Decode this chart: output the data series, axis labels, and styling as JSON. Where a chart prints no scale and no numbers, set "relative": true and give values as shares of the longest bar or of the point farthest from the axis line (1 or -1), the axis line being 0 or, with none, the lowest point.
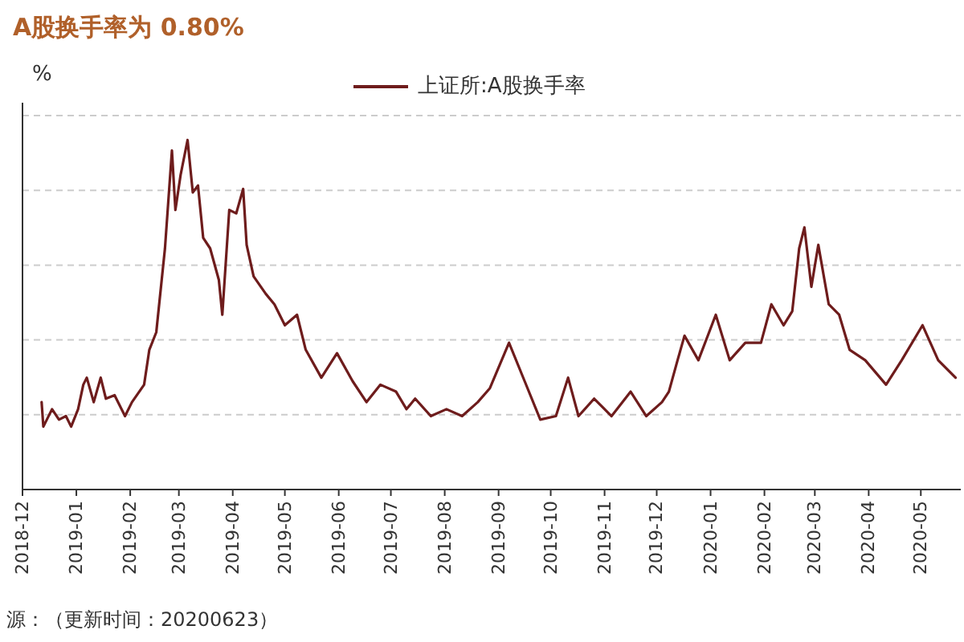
{
  "chart_data": {
    "type": "line",
    "title": "A股换手率为 0.80%",
    "ylabel": "%",
    "relative": true,
    "grid": "y",
    "legend": "top",
    "marker": "none",
    "line_style": "solid",
    "xlim": [
      "2018-12-01",
      "2020-05-24"
    ],
    "xticks": [
      {
        "value": "2018-12-01",
        "label": "2018-12"
      },
      {
        "value": "2019-01-01",
        "label": "2019-01"
      },
      {
        "value": "2019-02-01",
        "label": "2019-02"
      },
      {
        "value": "2019-03-01",
        "label": "2019-03"
      },
      {
        "value": "2019-04-01",
        "label": "2019-04"
      },
      {
        "value": "2019-05-01",
        "label": "2019-05"
      },
      {
        "value": "2019-06-01",
        "label": "2019-06"
      },
      {
        "value": "2019-07-01",
        "label": "2019-07"
      },
      {
        "value": "2019-08-01",
        "label": "2019-08"
      },
      {
        "value": "2019-09-01",
        "label": "2019-09"
      },
      {
        "value": "2019-10-01",
        "label": "2019-10"
      },
      {
        "value": "2019-11-01",
        "label": "2019-11"
      },
      {
        "value": "2019-12-01",
        "label": "2019-12"
      },
      {
        "value": "2020-01-01",
        "label": "2020-01"
      },
      {
        "value": "2020-02-01",
        "label": "2020-02"
      },
      {
        "value": "2020-03-01",
        "label": "2020-03"
      },
      {
        "value": "2020-04-01",
        "label": "2020-04"
      },
      {
        "value": "2020-05-01",
        "label": "2020-05"
      }
    ],
    "x": [
      "2018-12-12",
      "2018-12-13",
      "2018-12-18",
      "2018-12-22",
      "2018-12-26",
      "2018-12-29",
      "2019-01-02",
      "2019-01-05",
      "2019-01-07",
      "2019-01-11",
      "2019-01-15",
      "2019-01-18",
      "2019-01-23",
      "2019-01-29",
      "2019-02-02",
      "2019-02-09",
      "2019-02-12",
      "2019-02-16",
      "2019-02-21",
      "2019-02-25",
      "2019-02-27",
      "2019-03-02",
      "2019-03-06",
      "2019-03-09",
      "2019-03-12",
      "2019-03-15",
      "2019-03-19",
      "2019-03-24",
      "2019-03-26",
      "2019-03-30",
      "2019-04-03",
      "2019-04-07",
      "2019-04-09",
      "2019-04-13",
      "2019-04-20",
      "2019-04-25",
      "2019-05-01",
      "2019-05-08",
      "2019-05-13",
      "2019-05-22",
      "2019-05-31",
      "2019-06-09",
      "2019-06-17",
      "2019-06-25",
      "2019-07-04",
      "2019-07-10",
      "2019-07-15",
      "2019-07-24",
      "2019-08-02",
      "2019-08-11",
      "2019-08-20",
      "2019-08-27",
      "2019-09-07",
      "2019-09-16",
      "2019-09-25",
      "2019-10-04",
      "2019-10-11",
      "2019-10-17",
      "2019-10-26",
      "2019-11-05",
      "2019-11-16",
      "2019-11-25",
      "2019-12-04",
      "2019-12-08",
      "2019-12-13",
      "2019-12-17",
      "2019-12-25",
      "2020-01-04",
      "2020-01-12",
      "2020-01-21",
      "2020-01-30",
      "2020-02-05",
      "2020-02-12",
      "2020-02-17",
      "2020-02-21",
      "2020-02-24",
      "2020-02-28",
      "2020-03-03",
      "2020-03-09",
      "2020-03-15",
      "2020-03-21",
      "2020-03-30",
      "2020-04-11",
      "2020-04-20",
      "2020-05-02",
      "2020-05-11",
      "2020-05-21"
    ],
    "series": [
      {
        "name": "上证所:A股换手率",
        "color": "#6e1c1c",
        "values": [
          0.25,
          0.18,
          0.23,
          0.2,
          0.21,
          0.18,
          0.23,
          0.3,
          0.32,
          0.25,
          0.32,
          0.26,
          0.27,
          0.21,
          0.25,
          0.3,
          0.4,
          0.45,
          0.69,
          0.97,
          0.8,
          0.9,
          1.0,
          0.85,
          0.87,
          0.72,
          0.69,
          0.6,
          0.5,
          0.8,
          0.79,
          0.86,
          0.7,
          0.61,
          0.56,
          0.53,
          0.47,
          0.5,
          0.4,
          0.32,
          0.39,
          0.31,
          0.25,
          0.3,
          0.28,
          0.23,
          0.26,
          0.21,
          0.23,
          0.21,
          0.25,
          0.29,
          0.42,
          0.31,
          0.2,
          0.21,
          0.32,
          0.21,
          0.26,
          0.21,
          0.28,
          0.21,
          0.25,
          0.28,
          0.37,
          0.44,
          0.37,
          0.5,
          0.37,
          0.42,
          0.42,
          0.53,
          0.47,
          0.51,
          0.69,
          0.75,
          0.58,
          0.7,
          0.53,
          0.5,
          0.4,
          0.37,
          0.3,
          0.37,
          0.47,
          0.37,
          0.32
        ]
      }
    ],
    "annotations": [
      "源：（更新时间：20200623）"
    ]
  }
}
